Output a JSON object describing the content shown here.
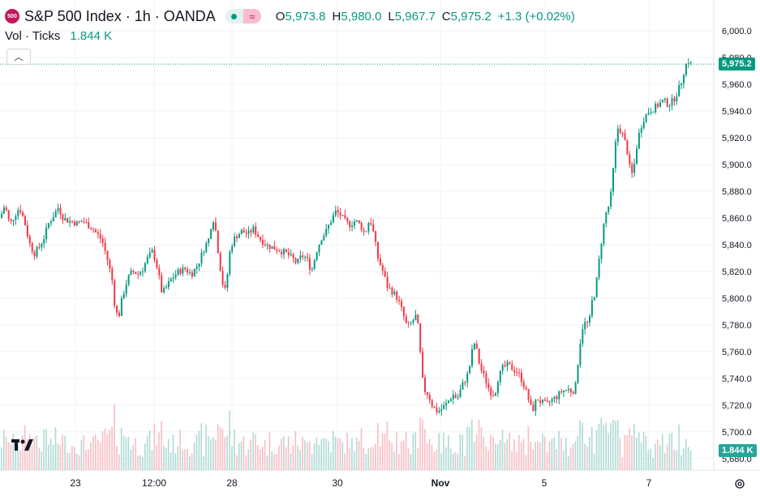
{
  "header": {
    "symbol_badge": "500",
    "title": "S&P 500 Index · 1h · OANDA",
    "ohlc": {
      "o_label": "O",
      "o_value": "5,973.8",
      "h_label": "H",
      "h_value": "5,980.0",
      "l_label": "L",
      "l_value": "5,967.7",
      "c_label": "C",
      "c_value": "5,975.2",
      "change": "+1.3 (+0.02%)"
    },
    "volume_label": "Vol · Ticks",
    "volume_value": "1.844 K"
  },
  "price_axis": {
    "ticks": [
      "6,000.0",
      "5,980.0",
      "5,960.0",
      "5,940.0",
      "5,920.0",
      "5,900.0",
      "5,880.0",
      "5,860.0",
      "5,840.0",
      "5,820.0",
      "5,800.0",
      "5,780.0",
      "5,760.0",
      "5,740.0",
      "5,720.0",
      "5,700.0",
      "5,680.0"
    ],
    "last_price_label": "5,975.2",
    "last_volume_label": "1.844 K"
  },
  "time_axis": {
    "ticks": [
      "23",
      "12:00",
      "28",
      "30",
      "Nov",
      "5",
      "7"
    ]
  },
  "colors": {
    "up": "#089981",
    "down": "#f23645",
    "grid": "#f0f3fa",
    "axis_text": "#131722"
  },
  "chart_data": {
    "type": "candlestick",
    "interval": "1h",
    "ylim": [
      5675,
      6005
    ],
    "last_price": 5975.2,
    "last_volume_k": 1.844,
    "price_ticks": [
      6000,
      5980,
      5960,
      5940,
      5920,
      5900,
      5880,
      5860,
      5840,
      5820,
      5800,
      5780,
      5760,
      5740,
      5720,
      5700,
      5680
    ],
    "x_ticks": [
      "23",
      "12:00",
      "28",
      "30",
      "Nov",
      "5",
      "7"
    ],
    "close_path": [
      [
        0,
        5860
      ],
      [
        6,
        5870
      ],
      [
        12,
        5855
      ],
      [
        18,
        5862
      ],
      [
        24,
        5868
      ],
      [
        30,
        5858
      ],
      [
        36,
        5842
      ],
      [
        42,
        5833
      ],
      [
        48,
        5838
      ],
      [
        54,
        5845
      ],
      [
        60,
        5856
      ],
      [
        66,
        5862
      ],
      [
        72,
        5868
      ],
      [
        78,
        5860
      ],
      [
        84,
        5858
      ],
      [
        90,
        5857
      ],
      [
        96,
        5856
      ],
      [
        102,
        5858
      ],
      [
        108,
        5855
      ],
      [
        114,
        5852
      ],
      [
        120,
        5848
      ],
      [
        126,
        5843
      ],
      [
        132,
        5830
      ],
      [
        138,
        5815
      ],
      [
        142,
        5792
      ],
      [
        146,
        5785
      ],
      [
        150,
        5798
      ],
      [
        155,
        5810
      ],
      [
        160,
        5818
      ],
      [
        165,
        5820
      ],
      [
        170,
        5818
      ],
      [
        176,
        5822
      ],
      [
        182,
        5830
      ],
      [
        188,
        5835
      ],
      [
        192,
        5828
      ],
      [
        196,
        5816
      ],
      [
        200,
        5803
      ],
      [
        205,
        5808
      ],
      [
        212,
        5815
      ],
      [
        220,
        5820
      ],
      [
        228,
        5822
      ],
      [
        236,
        5818
      ],
      [
        244,
        5825
      ],
      [
        252,
        5838
      ],
      [
        258,
        5845
      ],
      [
        262,
        5862
      ],
      [
        266,
        5850
      ],
      [
        270,
        5830
      ],
      [
        274,
        5812
      ],
      [
        278,
        5805
      ],
      [
        284,
        5838
      ],
      [
        290,
        5846
      ],
      [
        298,
        5850
      ],
      [
        306,
        5848
      ],
      [
        312,
        5852
      ],
      [
        320,
        5845
      ],
      [
        328,
        5840
      ],
      [
        336,
        5838
      ],
      [
        344,
        5836
      ],
      [
        352,
        5834
      ],
      [
        360,
        5830
      ],
      [
        366,
        5826
      ],
      [
        372,
        5832
      ],
      [
        378,
        5830
      ],
      [
        384,
        5820
      ],
      [
        390,
        5835
      ],
      [
        396,
        5845
      ],
      [
        402,
        5850
      ],
      [
        408,
        5858
      ],
      [
        414,
        5865
      ],
      [
        420,
        5862
      ],
      [
        426,
        5857
      ],
      [
        432,
        5855
      ],
      [
        438,
        5858
      ],
      [
        444,
        5855
      ],
      [
        450,
        5848
      ],
      [
        456,
        5860
      ],
      [
        460,
        5850
      ],
      [
        466,
        5830
      ],
      [
        472,
        5820
      ],
      [
        478,
        5808
      ],
      [
        484,
        5805
      ],
      [
        490,
        5800
      ],
      [
        496,
        5790
      ],
      [
        502,
        5778
      ],
      [
        508,
        5782
      ],
      [
        514,
        5788
      ],
      [
        518,
        5760
      ],
      [
        522,
        5732
      ],
      [
        528,
        5728
      ],
      [
        534,
        5718
      ],
      [
        540,
        5715
      ],
      [
        546,
        5718
      ],
      [
        552,
        5722
      ],
      [
        558,
        5728
      ],
      [
        564,
        5725
      ],
      [
        570,
        5735
      ],
      [
        576,
        5742
      ],
      [
        580,
        5752
      ],
      [
        584,
        5768
      ],
      [
        588,
        5760
      ],
      [
        592,
        5748
      ],
      [
        598,
        5740
      ],
      [
        604,
        5730
      ],
      [
        610,
        5728
      ],
      [
        614,
        5740
      ],
      [
        620,
        5748
      ],
      [
        626,
        5750
      ],
      [
        632,
        5747
      ],
      [
        638,
        5745
      ],
      [
        644,
        5738
      ],
      [
        650,
        5728
      ],
      [
        656,
        5715
      ],
      [
        662,
        5725
      ],
      [
        668,
        5722
      ],
      [
        674,
        5720
      ],
      [
        680,
        5724
      ],
      [
        686,
        5726
      ],
      [
        692,
        5730
      ],
      [
        700,
        5732
      ],
      [
        706,
        5730
      ],
      [
        710,
        5735
      ],
      [
        714,
        5762
      ],
      [
        718,
        5778
      ],
      [
        722,
        5782
      ],
      [
        726,
        5780
      ],
      [
        730,
        5798
      ],
      [
        734,
        5805
      ],
      [
        738,
        5825
      ],
      [
        742,
        5845
      ],
      [
        746,
        5862
      ],
      [
        750,
        5868
      ],
      [
        754,
        5880
      ],
      [
        758,
        5912
      ],
      [
        762,
        5928
      ],
      [
        766,
        5925
      ],
      [
        770,
        5918
      ],
      [
        774,
        5908
      ],
      [
        778,
        5890
      ],
      [
        782,
        5900
      ],
      [
        786,
        5918
      ],
      [
        790,
        5928
      ],
      [
        794,
        5935
      ],
      [
        800,
        5940
      ],
      [
        806,
        5942
      ],
      [
        812,
        5945
      ],
      [
        818,
        5948
      ],
      [
        824,
        5945
      ],
      [
        830,
        5948
      ],
      [
        836,
        5955
      ],
      [
        840,
        5962
      ],
      [
        844,
        5972
      ],
      [
        848,
        5978
      ],
      [
        852,
        5975
      ]
    ]
  }
}
